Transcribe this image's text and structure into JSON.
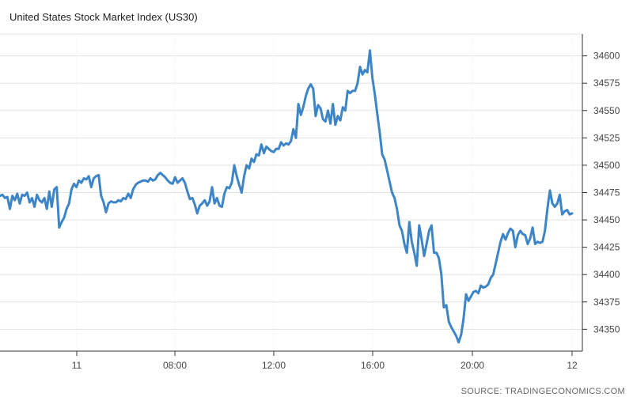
{
  "chart_data": {
    "type": "line",
    "title": "United States Stock Market Index (US30)",
    "source": "SOURCE: TRADINGECONOMICS.COM",
    "xlabel": "",
    "ylabel": "",
    "x_tick_labels": [
      "11",
      "08:00",
      "12:00",
      "16:00",
      "20:00",
      "12"
    ],
    "y_ticks": [
      34350,
      34375,
      34400,
      34425,
      34450,
      34475,
      34500,
      34525,
      34550,
      34575,
      34600
    ],
    "ylim": [
      34330,
      34620
    ],
    "grid": true,
    "line_color": "#3d85c6",
    "series": [
      {
        "values": [
          34472,
          34473,
          34470,
          34471,
          34460,
          34472,
          34468,
          34474,
          34465,
          34473,
          34472,
          34475,
          34466,
          34470,
          34462,
          34473,
          34468,
          34466,
          34470,
          34460,
          34476,
          34462,
          34478,
          34480,
          34443,
          34448,
          34452,
          34460,
          34465,
          34478,
          34483,
          34480,
          34486,
          34484,
          34488,
          34487,
          34490,
          34480,
          34488,
          34490,
          34491,
          34472,
          34466,
          34457,
          34465,
          34467,
          34466,
          34466,
          34468,
          34467,
          34470,
          34469,
          34474,
          34470,
          34478,
          34482,
          34484,
          34485,
          34486,
          34486,
          34485,
          34488,
          34486,
          34487,
          34491,
          34493,
          34491,
          34489,
          34486,
          34484,
          34483,
          34489,
          34484,
          34486,
          34488,
          34484,
          34476,
          34469,
          34470,
          34464,
          34456,
          34463,
          34465,
          34468,
          34463,
          34467,
          34480,
          34465,
          34470,
          34463,
          34462,
          34474,
          34480,
          34479,
          34484,
          34500,
          34490,
          34482,
          34475,
          34490,
          34500,
          34497,
          34506,
          34503,
          34510,
          34509,
          34519,
          34511,
          34517,
          34515,
          34513,
          34512,
          34515,
          34515,
          34521,
          34518,
          34520,
          34519,
          34522,
          34533,
          34525,
          34556,
          34546,
          34553,
          34563,
          34570,
          34574,
          34570,
          34545,
          34555,
          34552,
          34542,
          34540,
          34550,
          34538,
          34556,
          34537,
          34545,
          34541,
          34553,
          34550,
          34568,
          34566,
          34568,
          34568,
          34575,
          34590,
          34583,
          34587,
          34585,
          34605,
          34580,
          34565,
          34547,
          34530,
          34510,
          34505,
          34495,
          34485,
          34475,
          34470,
          34460,
          34445,
          34440,
          34428,
          34420,
          34448,
          34430,
          34420,
          34408,
          34445,
          34432,
          34417,
          34428,
          34440,
          34445,
          34420,
          34420,
          34415,
          34400,
          34370,
          34372,
          34357,
          34352,
          34348,
          34344,
          34338,
          34345,
          34360,
          34382,
          34376,
          34380,
          34384,
          34385,
          34383,
          34390,
          34388,
          34389,
          34391,
          34397,
          34400,
          34410,
          34420,
          34430,
          34437,
          34432,
          34438,
          34442,
          34440,
          34425,
          34436,
          34440,
          34437,
          34436,
          34428,
          34433,
          34443,
          34428,
          34430,
          34429,
          34430,
          34440,
          34460,
          34477,
          34465,
          34462,
          34465,
          34473,
          34455,
          34458,
          34459,
          34455,
          34456
        ]
      }
    ]
  }
}
